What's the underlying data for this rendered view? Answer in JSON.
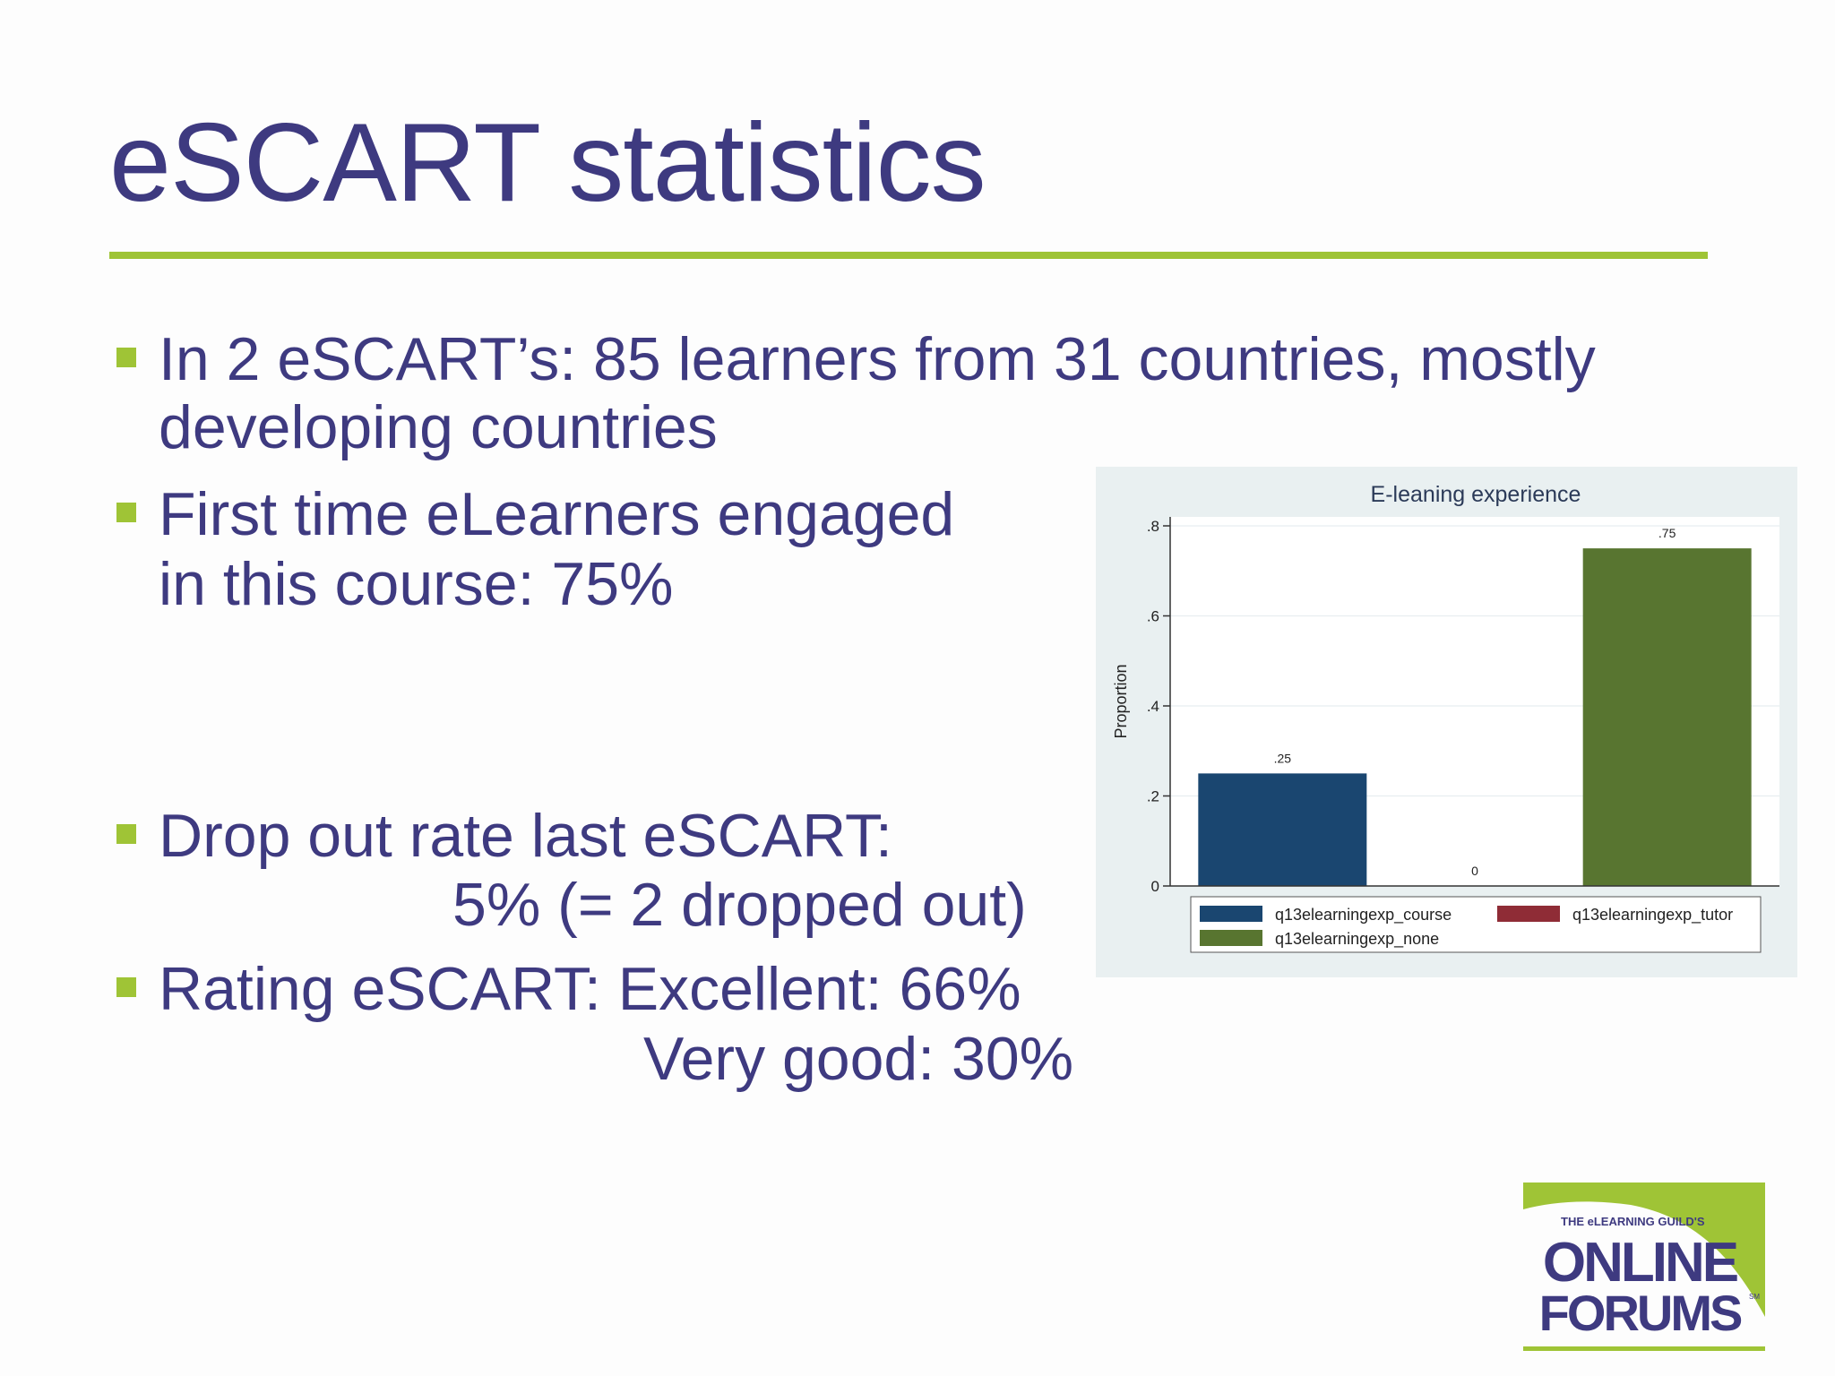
{
  "slide": {
    "title": "eSCART statistics",
    "bullets": [
      {
        "line1": "In 2 eSCART’s: 85 learners from 31 countries, mostly",
        "line2": "developing countries"
      },
      {
        "line1": "First time eLearners engaged",
        "line2": "in this course: 75%"
      },
      {
        "line1": "Drop out rate last eSCART:",
        "line2": "5% (= 2 dropped out)"
      },
      {
        "line1": "Rating eSCART: Excellent: 66%",
        "line2": "Very good: 30%"
      }
    ],
    "colors": {
      "title": "#3e3a80",
      "accent": "#9fc436"
    }
  },
  "chart_data": {
    "type": "bar",
    "title": "E-leaning experience",
    "ylabel": "Proportion",
    "ylim": [
      0,
      0.8
    ],
    "yticks": [
      0,
      0.2,
      0.4,
      0.6,
      0.8
    ],
    "ytick_labels": [
      "0",
      ".2",
      ".4",
      ".6",
      ".8"
    ],
    "grid": true,
    "legend_position": "bottom",
    "series": [
      {
        "name": "q13elearningexp_course",
        "value": 0.25,
        "label": ".25",
        "color": "#1a4670"
      },
      {
        "name": "q13elearningexp_tutor",
        "value": 0,
        "label": "0",
        "color": "#8f2c36"
      },
      {
        "name": "q13elearningexp_none",
        "value": 0.75,
        "label": ".75",
        "color": "#587530"
      }
    ]
  },
  "logo": {
    "tagline": "THE eLEARNING GUILD'S",
    "line1": "ONLINE",
    "line2": "FORUMS",
    "mark": "SM"
  }
}
